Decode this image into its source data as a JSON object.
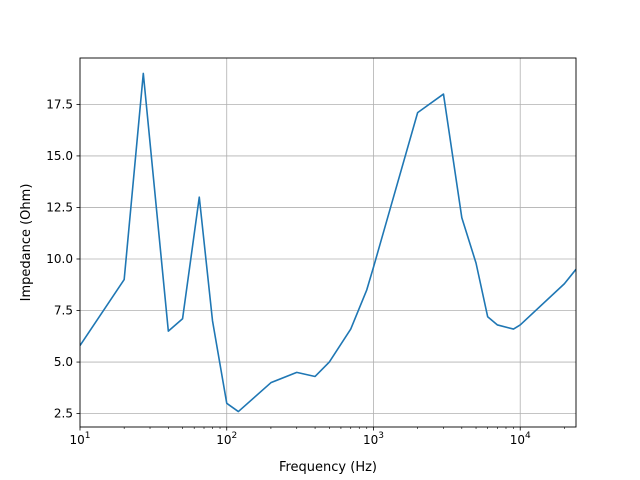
{
  "chart_data": {
    "type": "line",
    "title": "",
    "xlabel": "Frequency (Hz)",
    "ylabel": "Impedance (Ohm)",
    "xscale": "log",
    "xlim": [
      10,
      24000
    ],
    "ylim": [
      1.85,
      19.75
    ],
    "grid": true,
    "line_color": "#1f77b4",
    "x_ticks": [
      {
        "value": 10,
        "base": "10",
        "exp": "1"
      },
      {
        "value": 100,
        "base": "10",
        "exp": "2"
      },
      {
        "value": 1000,
        "base": "10",
        "exp": "3"
      },
      {
        "value": 10000,
        "base": "10",
        "exp": "4"
      }
    ],
    "y_ticks": [
      {
        "value": 2.5,
        "label": "2.5"
      },
      {
        "value": 5.0,
        "label": "5.0"
      },
      {
        "value": 7.5,
        "label": "7.5"
      },
      {
        "value": 10.0,
        "label": "10.0"
      },
      {
        "value": 12.5,
        "label": "12.5"
      },
      {
        "value": 15.0,
        "label": "15.0"
      },
      {
        "value": 17.5,
        "label": "17.5"
      }
    ],
    "x": [
      10,
      20,
      27,
      40,
      50,
      65,
      80,
      100,
      120,
      200,
      300,
      400,
      500,
      700,
      900,
      1000,
      2000,
      3000,
      4000,
      5000,
      6000,
      7000,
      9000,
      10000,
      20000,
      24000
    ],
    "y": [
      5.8,
      9.0,
      19.0,
      6.5,
      7.1,
      13.0,
      7.0,
      3.0,
      2.6,
      4.0,
      4.5,
      4.3,
      5.0,
      6.6,
      8.5,
      9.6,
      17.1,
      18.0,
      12.0,
      9.8,
      7.2,
      6.8,
      6.6,
      6.8,
      8.8,
      9.5
    ]
  }
}
